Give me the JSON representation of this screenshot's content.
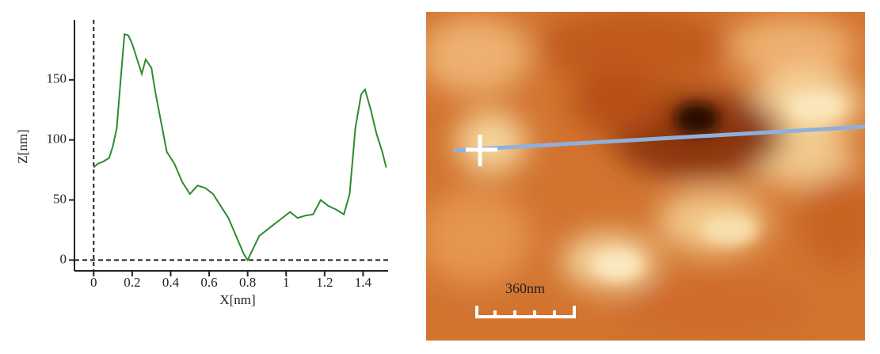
{
  "chart_data": {
    "type": "line",
    "xlabel": "X[nm]",
    "ylabel": "Z[nm]",
    "x": [
      0,
      0.02,
      0.05,
      0.08,
      0.1,
      0.12,
      0.14,
      0.16,
      0.18,
      0.2,
      0.22,
      0.25,
      0.27,
      0.3,
      0.32,
      0.35,
      0.38,
      0.42,
      0.46,
      0.5,
      0.54,
      0.58,
      0.62,
      0.66,
      0.7,
      0.74,
      0.78,
      0.8,
      0.83,
      0.86,
      0.9,
      0.94,
      0.98,
      1.02,
      1.06,
      1.1,
      1.14,
      1.18,
      1.22,
      1.26,
      1.3,
      1.33,
      1.36,
      1.39,
      1.41,
      1.44,
      1.47,
      1.5,
      1.52
    ],
    "values": [
      77,
      80,
      82,
      85,
      95,
      110,
      150,
      188,
      187,
      180,
      170,
      155,
      167,
      160,
      140,
      115,
      90,
      80,
      65,
      55,
      62,
      60,
      55,
      45,
      35,
      20,
      5,
      0,
      10,
      20,
      25,
      30,
      35,
      40,
      35,
      37,
      38,
      50,
      45,
      42,
      38,
      55,
      110,
      138,
      142,
      125,
      105,
      90,
      77
    ],
    "color": "#2e8b2e",
    "xlim": [
      -0.1,
      1.53
    ],
    "ylim": [
      -9,
      200
    ],
    "xticks": [
      0,
      0.2,
      0.4,
      0.6,
      0.8,
      1,
      1.2,
      1.4
    ],
    "yticks": [
      0,
      50,
      100,
      150
    ],
    "zero_lines": true
  },
  "image": {
    "scale_bar_label": "360nm"
  }
}
